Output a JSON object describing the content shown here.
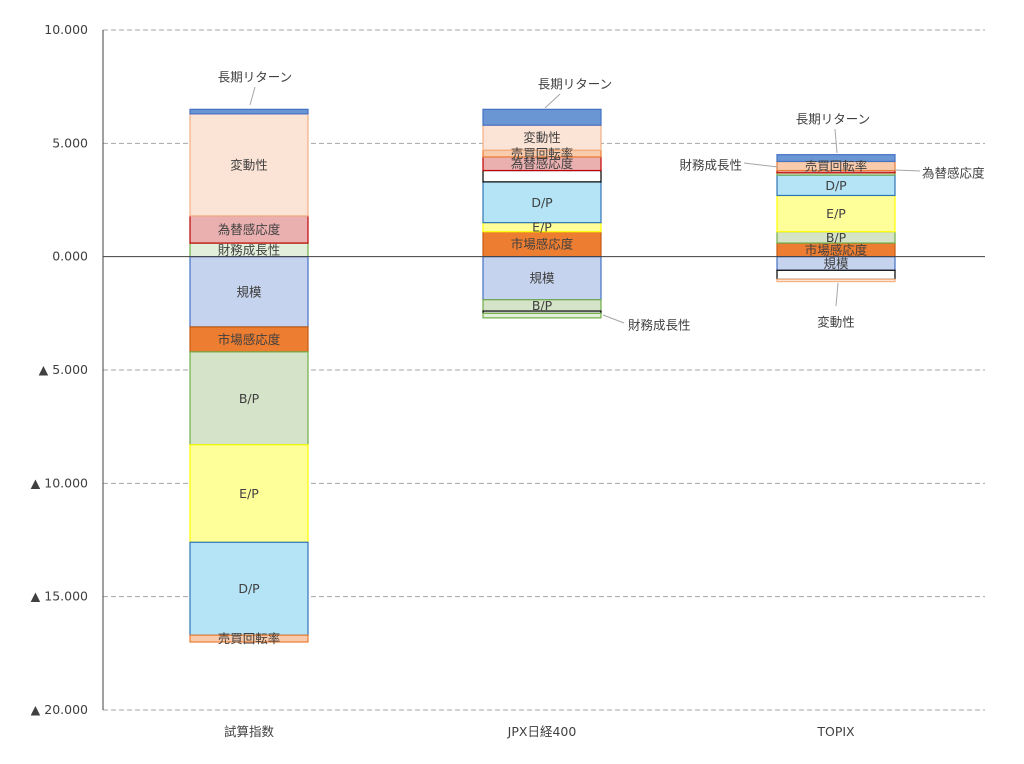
{
  "chart_data": {
    "type": "bar",
    "stacked": true,
    "categories": [
      "試算指数",
      "JPX日経400",
      "TOPIX"
    ],
    "ylim": [
      -20,
      10
    ],
    "yticks": [
      {
        "value": 10,
        "label": "10.000"
      },
      {
        "value": 5,
        "label": "5.000"
      },
      {
        "value": 0,
        "label": "0.000"
      },
      {
        "value": -5,
        "label": "▲ 5.000"
      },
      {
        "value": -10,
        "label": "▲ 10.000"
      },
      {
        "value": -15,
        "label": "▲ 15.000"
      },
      {
        "value": -20,
        "label": "▲ 20.000"
      }
    ],
    "grid": "horizontal dashed",
    "series": [
      {
        "name": "財務成長性",
        "fill": "#e2efda",
        "stroke": "#70ad47"
      },
      {
        "name": "為替感応度",
        "fill": "#eab0b0",
        "stroke": "#c00000"
      },
      {
        "name": "変動性",
        "fill": "#fbe3d6",
        "stroke": "#f4b183"
      },
      {
        "name": "長期リターン",
        "fill": "#6a96d4",
        "stroke": "#4472c4"
      },
      {
        "name": "規模",
        "fill": "#c5d3ee",
        "stroke": "#4472c4"
      },
      {
        "name": "市場感応度",
        "fill": "#ed7d31",
        "stroke": "#c55a11"
      },
      {
        "name": "B/P",
        "fill": "#d5e4c9",
        "stroke": "#70ad47"
      },
      {
        "name": "E/P",
        "fill": "#ffff99",
        "stroke": "#ffff00"
      },
      {
        "name": "D/P",
        "fill": "#b4e4f6",
        "stroke": "#2e75b6"
      },
      {
        "name": "売買回転率",
        "fill": "#f8cbad",
        "stroke": "#ed7d31"
      },
      {
        "name": "other",
        "fill": "#ffffff",
        "stroke": "#000000"
      }
    ],
    "bars": [
      {
        "category": "試算指数",
        "segments": [
          {
            "series": "財務成長性",
            "value": 0.6,
            "label": "財務成長性",
            "label_mode": "inside"
          },
          {
            "series": "為替感応度",
            "value": 1.2,
            "label": "為替感応度",
            "label_mode": "inside"
          },
          {
            "series": "変動性",
            "value": 4.5,
            "label": "変動性",
            "label_mode": "inside"
          },
          {
            "series": "長期リターン",
            "value": 0.2,
            "label": "長期リターン",
            "label_mode": "callout"
          },
          {
            "series": "規模",
            "value": -3.1,
            "label": "規模",
            "label_mode": "inside"
          },
          {
            "series": "市場感応度",
            "value": -1.1,
            "label": "市場感応度",
            "label_mode": "inside"
          },
          {
            "series": "B/P",
            "value": -4.1,
            "label": "B/P",
            "label_mode": "inside"
          },
          {
            "series": "E/P",
            "value": -4.3,
            "label": "E/P",
            "label_mode": "inside"
          },
          {
            "series": "D/P",
            "value": -4.1,
            "label": "D/P",
            "label_mode": "inside"
          },
          {
            "series": "売買回転率",
            "value": -0.3,
            "label": "売買回転率",
            "label_mode": "inside"
          }
        ]
      },
      {
        "category": "JPX日経400",
        "segments": [
          {
            "series": "市場感応度",
            "value": 1.1,
            "label": "市場感応度",
            "label_mode": "inside"
          },
          {
            "series": "E/P",
            "value": 0.4,
            "label": "E/P",
            "label_mode": "inside"
          },
          {
            "series": "D/P",
            "value": 1.8,
            "label": "D/P",
            "label_mode": "inside"
          },
          {
            "series": "other",
            "value": 0.5,
            "label": "",
            "label_mode": "none"
          },
          {
            "series": "為替感応度",
            "value": 0.6,
            "label": "為替感応度",
            "label_mode": "inside"
          },
          {
            "series": "売買回転率",
            "value": 0.3,
            "label": "売買回転率",
            "label_mode": "inside"
          },
          {
            "series": "変動性",
            "value": 1.1,
            "label": "変動性",
            "label_mode": "inside"
          },
          {
            "series": "長期リターン",
            "value": 0.7,
            "label": "長期リターン",
            "label_mode": "callout"
          },
          {
            "series": "規模",
            "value": -1.9,
            "label": "規模",
            "label_mode": "inside"
          },
          {
            "series": "B/P",
            "value": -0.5,
            "label": "B/P",
            "label_mode": "inside"
          },
          {
            "series": "other",
            "value": -0.1,
            "label": "",
            "label_mode": "none"
          },
          {
            "series": "財務成長性",
            "value": -0.2,
            "label": "財務成長性",
            "label_mode": "callout"
          }
        ]
      },
      {
        "category": "TOPIX",
        "segments": [
          {
            "series": "市場感応度",
            "value": 0.6,
            "label": "市場感応度",
            "label_mode": "inside"
          },
          {
            "series": "B/P",
            "value": 0.5,
            "label": "B/P",
            "label_mode": "inside"
          },
          {
            "series": "E/P",
            "value": 1.6,
            "label": "E/P",
            "label_mode": "inside"
          },
          {
            "series": "D/P",
            "value": 0.9,
            "label": "D/P",
            "label_mode": "inside"
          },
          {
            "series": "財務成長性",
            "value": 0.1,
            "label": "財務成長性",
            "label_mode": "callout"
          },
          {
            "series": "為替感応度",
            "value": 0.1,
            "label": "為替感応度",
            "label_mode": "callout"
          },
          {
            "series": "売買回転率",
            "value": 0.4,
            "label": "売買回転率",
            "label_mode": "inside"
          },
          {
            "series": "長期リターン",
            "value": 0.3,
            "label": "長期リターン",
            "label_mode": "callout"
          },
          {
            "series": "規模",
            "value": -0.6,
            "label": "規模",
            "label_mode": "inside"
          },
          {
            "series": "other",
            "value": -0.4,
            "label": "",
            "label_mode": "none"
          },
          {
            "series": "変動性",
            "value": -0.1,
            "label": "変動性",
            "label_mode": "callout"
          }
        ]
      }
    ]
  }
}
